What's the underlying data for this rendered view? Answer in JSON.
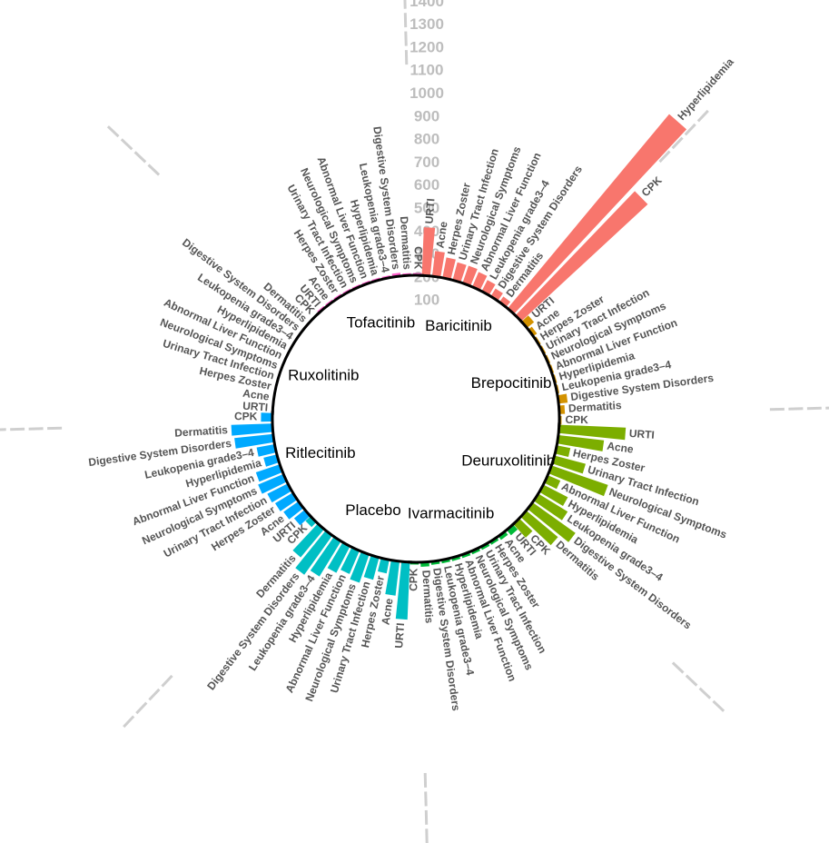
{
  "chart_data": {
    "type": "bar",
    "subtype": "circular-grouped-bar",
    "y_ticks": [
      "100",
      "200",
      "300",
      "400",
      "500",
      "600",
      "700",
      "800",
      "900",
      "1000",
      "1100",
      "1200",
      "1300",
      "1400"
    ],
    "ylim": [
      0,
      1400
    ],
    "grid": false,
    "legend": "none",
    "categories": [
      "URTI",
      "Acne",
      "Herpes Zoster",
      "Urinary Tract Infection",
      "Neurological Symptoms",
      "Abnormal Liver Function",
      "Hyperlipidemia",
      "Leukopenia grade3–4",
      "Digestive System Disorders",
      "Dermatitis",
      "CPK"
    ],
    "groups": [
      {
        "name": "Baricitinib",
        "color": "#F8766D",
        "order": [
          "URTI",
          "Acne",
          "Herpes Zoster",
          "Urinary Tract Infection",
          "Neurological Symptoms",
          "Abnormal Liver Function",
          "Leukopenia grade3–4",
          "Digestive System Disorders",
          "Dermatitis",
          "Hyperlipidemia",
          "CPK"
        ],
        "values": [
          210,
          110,
          90,
          80,
          80,
          70,
          55,
          40,
          30,
          1100,
          750
        ]
      },
      {
        "name": "Brepocitinib",
        "color": "#D39200",
        "order": [
          "URTI",
          "Acne",
          "Herpes Zoster",
          "Urinary Tract Infection",
          "Neurological Symptoms",
          "Abnormal Liver Function",
          "Hyperlipidemia",
          "Leukopenia grade3–4",
          "Digestive System Disorders",
          "Dermatitis",
          "CPK"
        ],
        "values": [
          40,
          20,
          10,
          10,
          10,
          10,
          10,
          10,
          40,
          25,
          10
        ]
      },
      {
        "name": "Deuruxolitinib",
        "color": "#7CAE00",
        "order": [
          "URTI",
          "Acne",
          "Herpes Zoster",
          "Urinary Tract Infection",
          "Neurological Symptoms",
          "Abnormal Liver Function",
          "Hyperlipidemia",
          "Leukopenia grade3–4",
          "Digestive System Disorders",
          "Dermatitis",
          "CPK"
        ],
        "values": [
          290,
          200,
          60,
          140,
          260,
          60,
          120,
          150,
          230,
          180,
          80
        ]
      },
      {
        "name": "Ivarmacitinib",
        "color": "#00BA38",
        "order": [
          "URTI",
          "Acne",
          "Herpes Zoster",
          "Urinary Tract Infection",
          "Neurological Symptoms",
          "Abnormal Liver Function",
          "Hyperlipidemia",
          "Leukopenia grade3–4",
          "Digestive System Disorders",
          "Dermatitis",
          "CPK"
        ],
        "values": [
          30,
          20,
          15,
          15,
          15,
          15,
          15,
          15,
          15,
          20,
          10
        ]
      },
      {
        "name": "Placebo",
        "color": "#00BFC4",
        "order": [
          "URTI",
          "Acne",
          "Herpes Zoster",
          "Urinary Tract Infection",
          "Neurological Symptoms",
          "Abnormal Liver Function",
          "Hyperlipidemia",
          "Leukopenia grade3–4",
          "Digestive System Disorders",
          "Dermatitis",
          "CPK"
        ],
        "values": [
          250,
          150,
          60,
          100,
          130,
          110,
          130,
          180,
          210,
          160,
          30
        ]
      },
      {
        "name": "Ritlecitinib",
        "color": "#00A9FF",
        "order": [
          "URTI",
          "Acne",
          "Herpes Zoster",
          "Urinary Tract Infection",
          "Neurological Symptoms",
          "Abnormal Liver Function",
          "Hyperlipidemia",
          "Leukopenia grade3–4",
          "Digestive System Disorders",
          "Dermatitis",
          "CPK"
        ],
        "values": [
          60,
          80,
          90,
          100,
          120,
          110,
          60,
          80,
          170,
          180,
          50
        ]
      },
      {
        "name": "Ruxolitinib",
        "color": "#C77CFF",
        "order": [
          "URTI",
          "Acne",
          "Herpes Zoster",
          "Urinary Tract Infection",
          "Neurological Symptoms",
          "Abnormal Liver Function",
          "Hyperlipidemia",
          "Leukopenia grade3–4",
          "Digestive System Disorders",
          "Dermatitis",
          "CPK"
        ],
        "values": [
          5,
          5,
          5,
          5,
          5,
          5,
          5,
          5,
          5,
          5,
          5
        ]
      },
      {
        "name": "Tofacitinib",
        "color": "#FF61CC",
        "order": [
          "URTI",
          "Acne",
          "Herpes Zoster",
          "Urinary Tract Infection",
          "Neurological Symptoms",
          "Abnormal Liver Function",
          "Hyperlipidemia",
          "Leukopenia grade3–4",
          "Digestive System Disorders",
          "Dermatitis",
          "CPK"
        ],
        "values": [
          10,
          10,
          10,
          10,
          10,
          10,
          10,
          10,
          15,
          10,
          10
        ]
      }
    ]
  }
}
